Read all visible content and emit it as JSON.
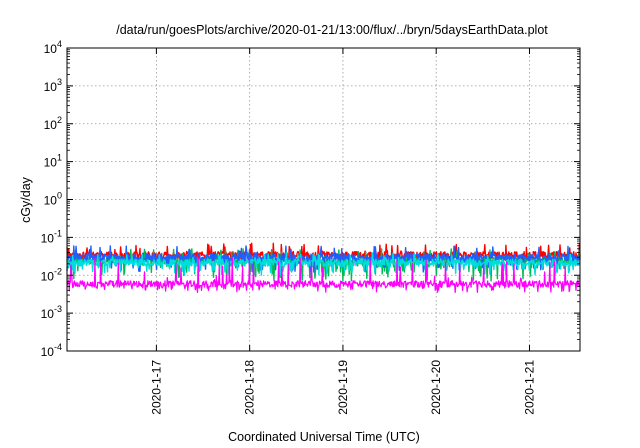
{
  "chart_data": {
    "type": "line",
    "title": "/data/run/goesPlots/archive/2020-01-21/13:00/flux/../bryn/5daysEarthData.plot",
    "xlabel": "Coordinated Universal Time (UTC)",
    "ylabel": "cGy/day",
    "y_scale": "log",
    "ylim": [
      0.0001,
      10000
    ],
    "y_ticks": [
      {
        "base": "10",
        "exp": "-4",
        "value": 0.0001
      },
      {
        "base": "10",
        "exp": "-3",
        "value": 0.001
      },
      {
        "base": "10",
        "exp": "-2",
        "value": 0.01
      },
      {
        "base": "10",
        "exp": "-1",
        "value": 0.1
      },
      {
        "base": "10",
        "exp": "0",
        "value": 1
      },
      {
        "base": "10",
        "exp": "1",
        "value": 10
      },
      {
        "base": "10",
        "exp": "2",
        "value": 100
      },
      {
        "base": "10",
        "exp": "3",
        "value": 1000
      },
      {
        "base": "10",
        "exp": "4",
        "value": 10000
      }
    ],
    "xlim": [
      "2020-01-16T01:00",
      "2020-01-21T13:00"
    ],
    "x_ticks": [
      "2020-1-17",
      "2020-1-18",
      "2020-1-19",
      "2020-1-20",
      "2020-1-21"
    ],
    "grid": true,
    "series": [
      {
        "color": "#ff0000",
        "values": {
          "typical": 0.035,
          "low": 0.022,
          "high": 0.07
        }
      },
      {
        "color": "#00bb55",
        "values": {
          "typical": 0.025,
          "low": 0.007,
          "high": 0.05
        }
      },
      {
        "color": "#1f5fff",
        "values": {
          "typical": 0.03,
          "low": 0.012,
          "high": 0.06
        }
      },
      {
        "color": "#00dddd",
        "values": {
          "typical": 0.022,
          "low": 0.01,
          "high": 0.04
        }
      },
      {
        "color": "#ff00ff",
        "values": {
          "typical": 0.006,
          "low": 0.0035,
          "high": 0.03
        }
      }
    ]
  }
}
